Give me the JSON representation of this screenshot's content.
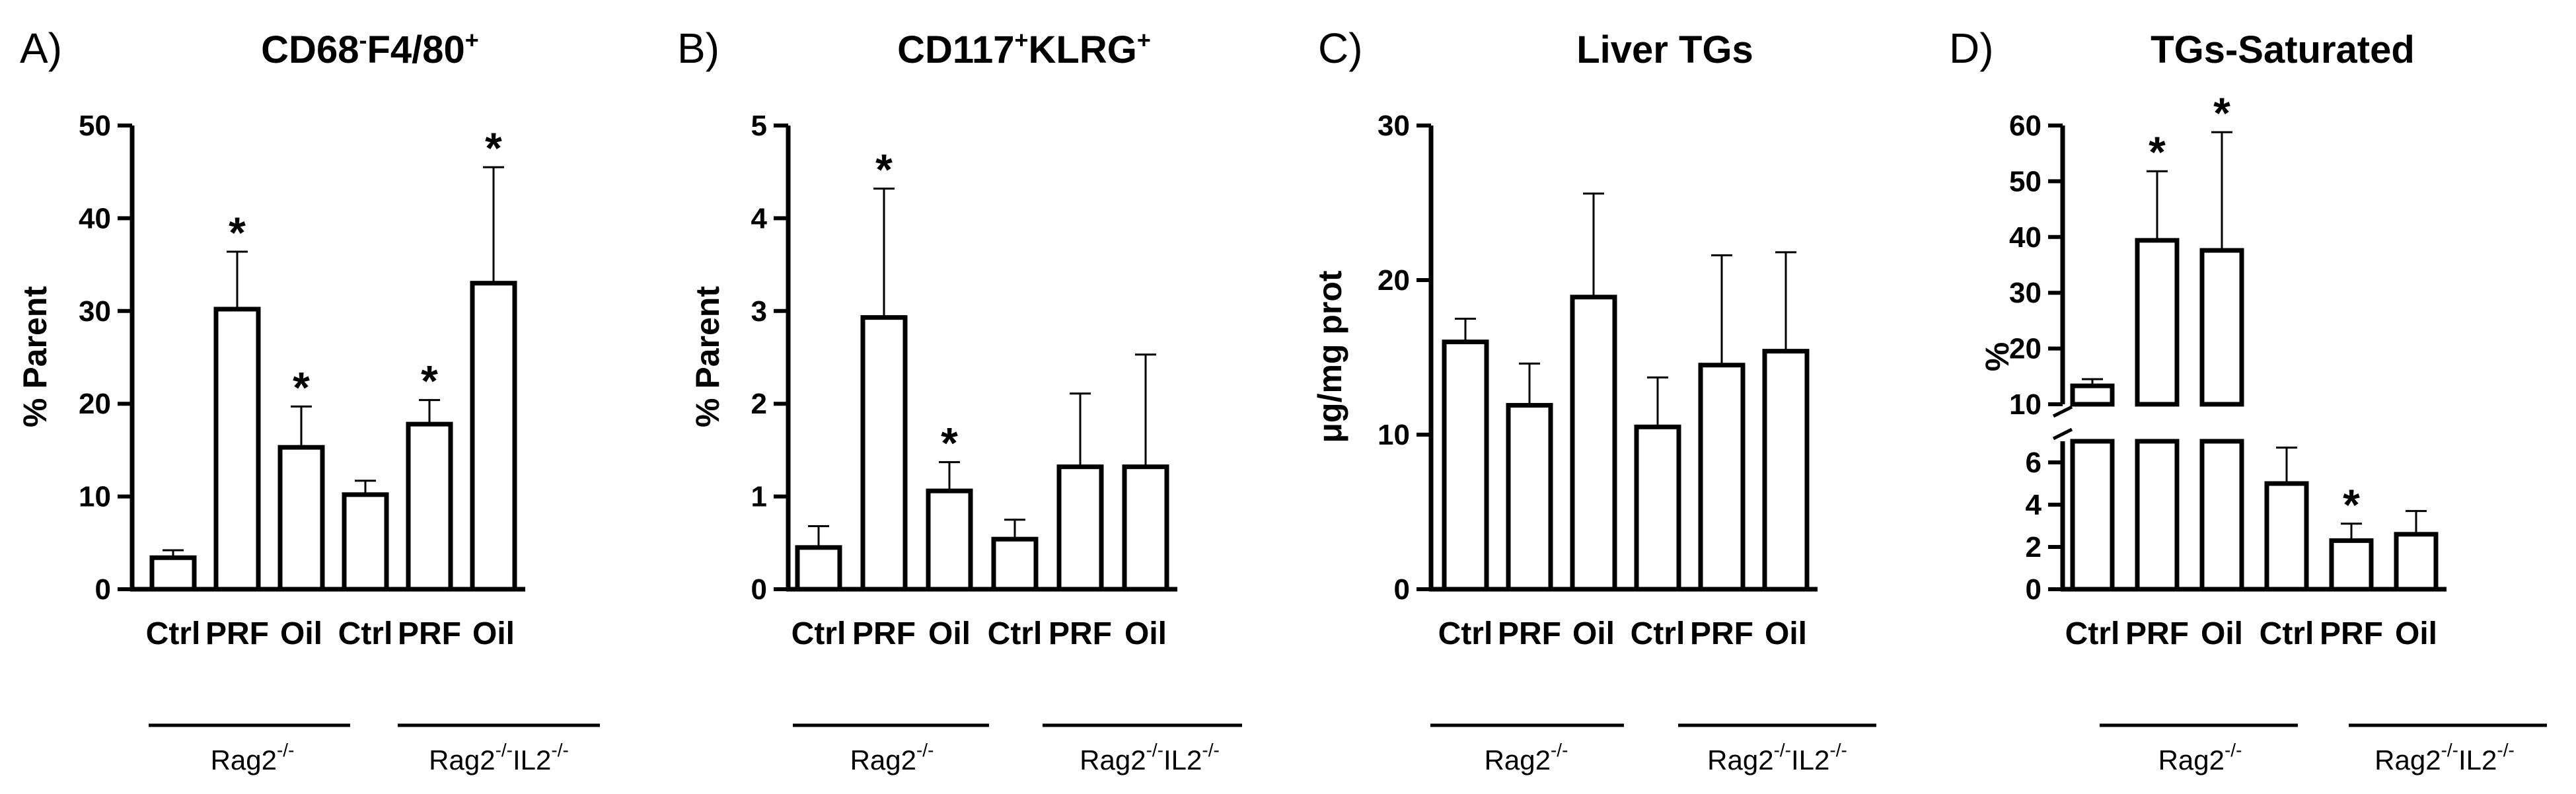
{
  "chart_data": [
    {
      "type": "bar",
      "panel": "A)",
      "title": {
        "main": "CD68",
        "sup1": "-",
        "mid": "F4/80",
        "sup2": "+"
      },
      "ylabel": "% Parent",
      "ylim": [
        0,
        50
      ],
      "yticks": [
        0,
        10,
        20,
        30,
        40,
        50
      ],
      "categories": [
        "Ctrl",
        "PRF",
        "Oil",
        "Ctrl",
        "PRF",
        "Oil"
      ],
      "values": [
        3.4,
        30.2,
        15.3,
        10.2,
        17.8,
        33.0
      ],
      "errors": [
        0.8,
        6.2,
        4.4,
        1.5,
        2.6,
        12.5
      ],
      "significant": [
        false,
        true,
        true,
        false,
        true,
        true
      ],
      "significance_marker": "*",
      "groups": [
        {
          "base": "Rag2",
          "sup": "-/-",
          "categories": [
            0,
            1,
            2
          ]
        },
        {
          "base": "Rag2",
          "sup": "-/-",
          "base2": "IL2",
          "sup2": "-/-",
          "categories": [
            3,
            4,
            5
          ]
        }
      ]
    },
    {
      "type": "bar",
      "panel": "B)",
      "title": {
        "main": "CD117",
        "sup1": "+",
        "mid": "KLRG",
        "sup2": "+"
      },
      "ylabel": "% Parent",
      "ylim": [
        0,
        5
      ],
      "yticks": [
        0,
        1,
        2,
        3,
        4,
        5
      ],
      "categories": [
        "Ctrl",
        "PRF",
        "Oil",
        "Ctrl",
        "PRF",
        "Oil"
      ],
      "values": [
        0.45,
        2.93,
        1.06,
        0.54,
        1.32,
        1.32
      ],
      "errors": [
        0.23,
        1.39,
        0.31,
        0.21,
        0.79,
        1.21
      ],
      "significant": [
        false,
        true,
        true,
        false,
        false,
        false
      ],
      "significance_marker": "*",
      "groups": [
        {
          "base": "Rag2",
          "sup": "-/-",
          "categories": [
            0,
            1,
            2
          ]
        },
        {
          "base": "Rag2",
          "sup": "-/-",
          "base2": "IL2",
          "sup2": "-/-",
          "categories": [
            3,
            4,
            5
          ]
        }
      ]
    },
    {
      "type": "bar",
      "panel": "C)",
      "title": {
        "main": "Liver TGs"
      },
      "ylabel": "μg/mg prot",
      "ylim": [
        0,
        30
      ],
      "yticks": [
        0,
        10,
        20,
        30
      ],
      "categories": [
        "Ctrl",
        "PRF",
        "Oil",
        "Ctrl",
        "PRF",
        "Oil"
      ],
      "values": [
        16.0,
        11.9,
        18.9,
        10.5,
        14.5,
        15.4
      ],
      "errors": [
        1.5,
        2.7,
        6.7,
        3.2,
        7.1,
        6.4
      ],
      "significant": [
        false,
        false,
        false,
        false,
        false,
        false
      ],
      "significance_marker": "*",
      "groups": [
        {
          "base": "Rag2",
          "sup": "-/-",
          "categories": [
            0,
            1,
            2
          ]
        },
        {
          "base": "Rag2",
          "sup": "-/-",
          "base2": "IL2",
          "sup2": "-/-",
          "categories": [
            3,
            4,
            5
          ]
        }
      ]
    },
    {
      "type": "bar",
      "panel": "D)",
      "title": {
        "main": "TGs-Saturated"
      },
      "ylabel": "%",
      "axis_break": true,
      "segments": {
        "upper": [
          10,
          60
        ],
        "lower": [
          0,
          7
        ]
      },
      "yticks_upper": [
        10,
        20,
        30,
        40,
        50,
        60
      ],
      "yticks_lower": [
        0,
        2,
        4,
        6
      ],
      "categories": [
        "Ctrl",
        "PRF",
        "Oil",
        "Ctrl",
        "PRF",
        "Oil"
      ],
      "values": [
        13.3,
        39.4,
        37.6,
        5.0,
        2.3,
        2.6
      ],
      "errors": [
        1.2,
        12.4,
        21.2,
        1.7,
        0.8,
        1.1
      ],
      "significant": [
        false,
        true,
        true,
        false,
        true,
        false
      ],
      "significance_marker": "*",
      "groups": [
        {
          "base": "Rag2",
          "sup": "-/-",
          "categories": [
            0,
            1,
            2
          ]
        },
        {
          "base": "Rag2",
          "sup": "-/-",
          "base2": "IL2",
          "sup2": "-/-",
          "categories": [
            3,
            4,
            5
          ]
        }
      ]
    }
  ]
}
